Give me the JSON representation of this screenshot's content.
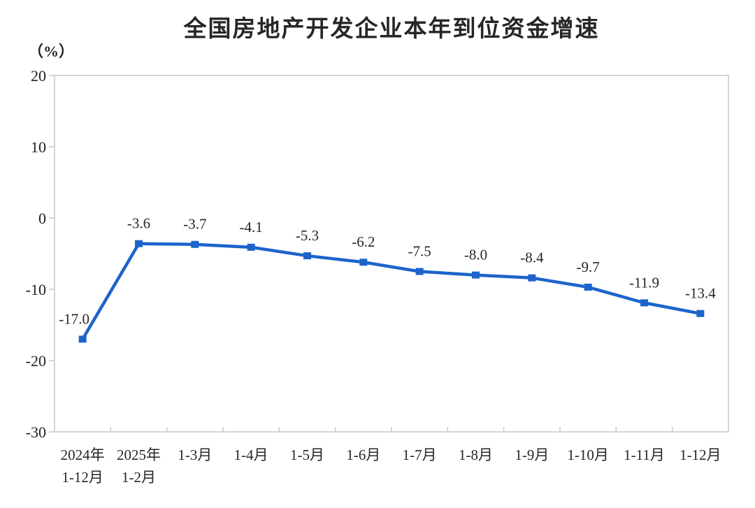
{
  "chart_data": {
    "type": "line",
    "title": "全国房地产开发企业本年到位资金增速",
    "unit_label": "（%）",
    "categories": [
      "2024年\n1-12月",
      "2025年\n1-2月",
      "1-3月",
      "1-4月",
      "1-5月",
      "1-6月",
      "1-7月",
      "1-8月",
      "1-9月",
      "1-10月",
      "1-11月",
      "1-12月"
    ],
    "values": [
      -17.0,
      -3.6,
      -3.7,
      -4.1,
      -5.3,
      -6.2,
      -7.5,
      -8.0,
      -8.4,
      -9.7,
      -11.9,
      -13.4
    ],
    "data_labels": [
      "-17.0",
      "-3.6",
      "-3.7",
      "-4.1",
      "-5.3",
      "-6.2",
      "-7.5",
      "-8.0",
      "-8.4",
      "-9.7",
      "-11.9",
      "-13.4"
    ],
    "xlabel": "",
    "ylabel": "（%）",
    "ylim": [
      -30,
      20
    ],
    "y_ticks": [
      20,
      10,
      0,
      -10,
      -20,
      -30
    ],
    "grid": false,
    "legend": "none",
    "line_color": "#1c64cb",
    "marker": "square",
    "marker_color": "#1c64cb",
    "axis_color": "#c9c9c9",
    "text_color": "#262626"
  }
}
